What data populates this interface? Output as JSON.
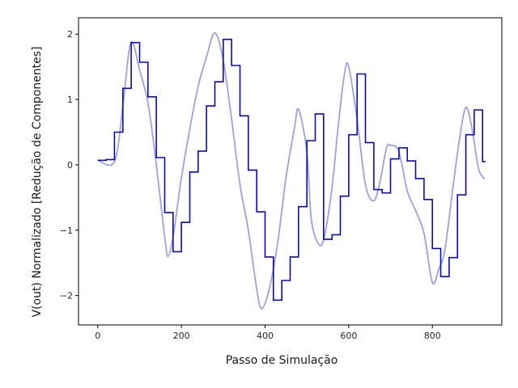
{
  "chart_data": {
    "type": "line",
    "title": "",
    "xlabel": "Passo de Simulação",
    "ylabel": "V(out) Normalizado [Redução de Componentes]",
    "xlim": [
      -46,
      966
    ],
    "ylim": [
      -2.45,
      2.25
    ],
    "xticks": [
      0,
      200,
      400,
      600,
      800
    ],
    "yticks": [
      -2,
      -1,
      0,
      1,
      2
    ],
    "ytick_labels": [
      "−2",
      "−1",
      "0",
      "1",
      "2"
    ],
    "grid": false,
    "legend": "none",
    "series": [
      {
        "style": "smooth",
        "color": "#8f8fdc",
        "x": [
          0,
          40,
          60,
          75,
          85,
          100,
          120,
          140,
          160,
          168,
          180,
          200,
          220,
          240,
          260,
          280,
          300,
          320,
          340,
          360,
          380,
          392,
          410,
          430,
          450,
          470,
          480,
          500,
          510,
          525,
          540,
          560,
          575,
          590,
          600,
          620,
          640,
          660,
          675,
          690,
          700,
          720,
          740,
          760,
          780,
          800,
          815,
          830,
          850,
          865,
          880,
          895,
          910,
          925
        ],
        "y": [
          0.07,
          0.05,
          0.9,
          1.75,
          1.85,
          1.45,
          0.95,
          0.0,
          -1.1,
          -1.4,
          -1.1,
          -0.2,
          0.55,
          1.2,
          1.65,
          2.02,
          1.6,
          0.7,
          -0.3,
          -1.0,
          -1.9,
          -2.2,
          -1.9,
          -1.2,
          -0.2,
          0.55,
          0.85,
          0.2,
          -0.8,
          -1.18,
          -1.15,
          -0.35,
          0.6,
          1.4,
          1.5,
          0.7,
          -0.3,
          -0.55,
          -0.25,
          0.25,
          0.3,
          0.2,
          -0.4,
          -0.7,
          -1.05,
          -1.8,
          -1.6,
          -1.3,
          -0.3,
          0.4,
          0.88,
          0.55,
          -0.05,
          -0.22
        ]
      },
      {
        "style": "step",
        "color": "#0a0ab4",
        "x": [
          0,
          20,
          40,
          60,
          80,
          100,
          120,
          140,
          160,
          180,
          200,
          220,
          240,
          260,
          280,
          300,
          320,
          340,
          360,
          380,
          400,
          420,
          440,
          460,
          480,
          500,
          520,
          540,
          560,
          580,
          600,
          620,
          640,
          660,
          680,
          700,
          720,
          740,
          760,
          780,
          800,
          820,
          840,
          860,
          880,
          900,
          920
        ],
        "y": [
          0.07,
          0.08,
          0.5,
          1.17,
          1.87,
          1.57,
          1.04,
          0.11,
          -0.73,
          -1.33,
          -0.88,
          -0.11,
          0.21,
          0.9,
          1.27,
          1.92,
          1.52,
          0.75,
          -0.08,
          -0.72,
          -1.41,
          -2.07,
          -1.77,
          -1.41,
          -0.64,
          0.37,
          0.78,
          -1.14,
          -1.07,
          -0.48,
          0.46,
          1.39,
          0.34,
          -0.38,
          -0.43,
          0.09,
          0.26,
          0.06,
          -0.21,
          -0.53,
          -1.28,
          -1.71,
          -1.42,
          -0.46,
          0.46,
          0.84,
          0.05
        ]
      }
    ]
  }
}
